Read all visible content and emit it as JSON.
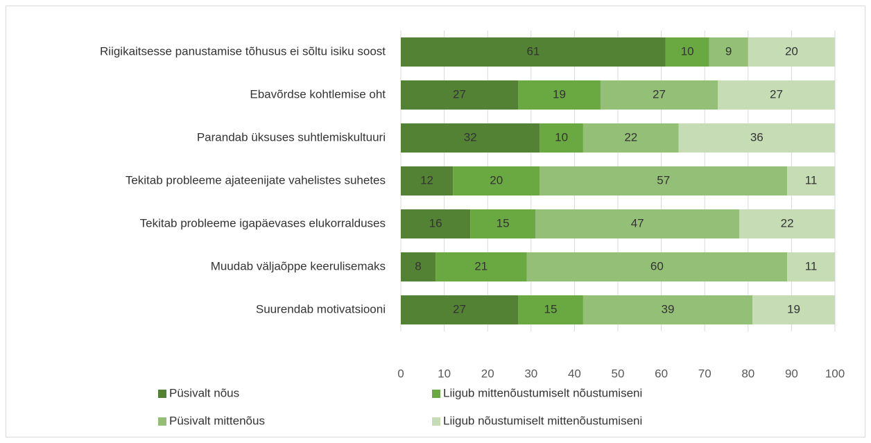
{
  "chart_data": {
    "type": "bar",
    "orientation": "horizontal",
    "stacked": true,
    "categories": [
      "Riigikaitsesse panustamise tõhusus ei sõltu isiku soost",
      "Ebavõrdse kohtlemise oht",
      "Parandab üksuses suhtlemiskultuuri",
      "Tekitab probleeme ajateenijate vahelistes suhetes",
      "Tekitab probleeme igapäevases elukorralduses",
      "Muudab väljaõppe keerulisemaks",
      "Suurendab motivatsiooni"
    ],
    "series": [
      {
        "name": "Püsivalt nõus",
        "color": "#548235",
        "values": [
          61,
          27,
          32,
          12,
          16,
          8,
          27
        ]
      },
      {
        "name": "Liigub mittenõustumiselt nõustumiseni",
        "color": "#6aa842",
        "values": [
          10,
          19,
          10,
          20,
          15,
          21,
          15
        ]
      },
      {
        "name": "Püsivalt mittenõus",
        "color": "#93bf76",
        "values": [
          9,
          27,
          22,
          57,
          47,
          60,
          39
        ]
      },
      {
        "name": "Liigub nõustumiselt mittenõustumiseni",
        "color": "#c5dcb5",
        "values": [
          20,
          27,
          36,
          11,
          22,
          11,
          19
        ]
      }
    ],
    "xlim": [
      0,
      100
    ],
    "xticks": [
      0,
      10,
      20,
      30,
      40,
      50,
      60,
      70,
      80,
      90,
      100
    ],
    "grid": true,
    "legend": "bottom"
  }
}
